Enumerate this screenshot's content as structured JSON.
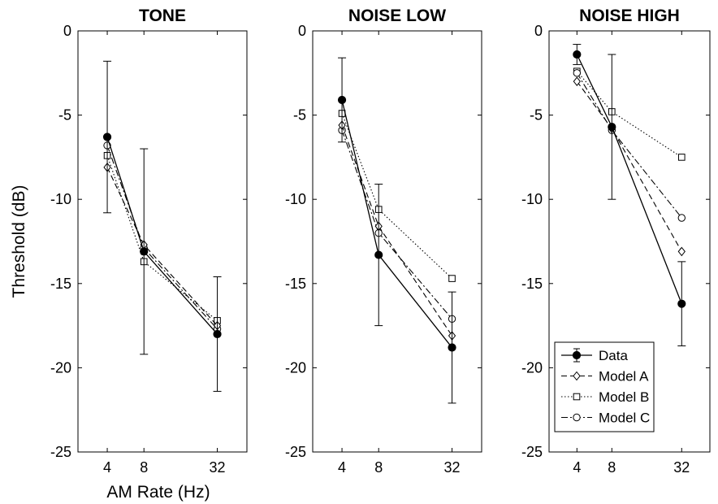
{
  "chart_data": [
    {
      "type": "line",
      "title": "TONE",
      "xlabel": "AM Rate (Hz)",
      "ylabel": "Threshold (dB)",
      "x_scale": "log2",
      "x_ticks": [
        "4",
        "8",
        "32"
      ],
      "xlim": [
        2.3,
        56
      ],
      "ylim": [
        -25,
        0
      ],
      "y_ticks": [
        "0",
        "-5",
        "-10",
        "-15",
        "-20",
        "-25"
      ],
      "grid": false,
      "series": [
        {
          "name": "Data",
          "x": [
            4,
            8,
            32
          ],
          "y": [
            -6.3,
            -13.1,
            -18.0
          ],
          "error": [
            4.5,
            6.1,
            3.4
          ]
        },
        {
          "name": "Model A",
          "x": [
            4,
            8,
            32
          ],
          "y": [
            -8.1,
            -12.7,
            -17.5
          ]
        },
        {
          "name": "Model B",
          "x": [
            4,
            8,
            32
          ],
          "y": [
            -7.4,
            -13.7,
            -17.2
          ]
        },
        {
          "name": "Model C",
          "x": [
            4,
            8,
            32
          ],
          "y": [
            -6.8,
            -12.9,
            -17.7
          ]
        }
      ]
    },
    {
      "type": "line",
      "title": "NOISE LOW",
      "xlabel": "",
      "ylabel": "",
      "x_scale": "log2",
      "x_ticks": [
        "4",
        "8",
        "32"
      ],
      "xlim": [
        2.3,
        56
      ],
      "ylim": [
        -25,
        0
      ],
      "y_ticks": [
        "0",
        "-5",
        "-10",
        "-15",
        "-20",
        "-25"
      ],
      "grid": false,
      "series": [
        {
          "name": "Data",
          "x": [
            4,
            8,
            32
          ],
          "y": [
            -4.1,
            -13.3,
            -18.8
          ],
          "error": [
            2.5,
            4.2,
            3.3
          ]
        },
        {
          "name": "Model A",
          "x": [
            4,
            8,
            32
          ],
          "y": [
            -5.6,
            -11.6,
            -18.1
          ]
        },
        {
          "name": "Model B",
          "x": [
            4,
            8,
            32
          ],
          "y": [
            -4.9,
            -10.6,
            -14.7
          ]
        },
        {
          "name": "Model C",
          "x": [
            4,
            8,
            32
          ],
          "y": [
            -5.9,
            -12.0,
            -17.1
          ]
        }
      ]
    },
    {
      "type": "line",
      "title": "NOISE HIGH",
      "xlabel": "",
      "ylabel": "",
      "x_scale": "log2",
      "x_ticks": [
        "4",
        "8",
        "32"
      ],
      "xlim": [
        2.3,
        56
      ],
      "ylim": [
        -25,
        0
      ],
      "y_ticks": [
        "0",
        "-5",
        "-10",
        "-15",
        "-20",
        "-25"
      ],
      "grid": false,
      "legend_position": "bottom-right",
      "series": [
        {
          "name": "Data",
          "x": [
            4,
            8,
            32
          ],
          "y": [
            -1.4,
            -5.7,
            -16.2
          ],
          "error": [
            0.6,
            4.3,
            2.5
          ]
        },
        {
          "name": "Model A",
          "x": [
            4,
            8,
            32
          ],
          "y": [
            -3.0,
            -5.8,
            -13.1
          ]
        },
        {
          "name": "Model B",
          "x": [
            4,
            8,
            32
          ],
          "y": [
            -2.4,
            -4.8,
            -7.5
          ]
        },
        {
          "name": "Model C",
          "x": [
            4,
            8,
            32
          ],
          "y": [
            -2.5,
            -5.9,
            -11.1
          ]
        }
      ]
    }
  ]
}
